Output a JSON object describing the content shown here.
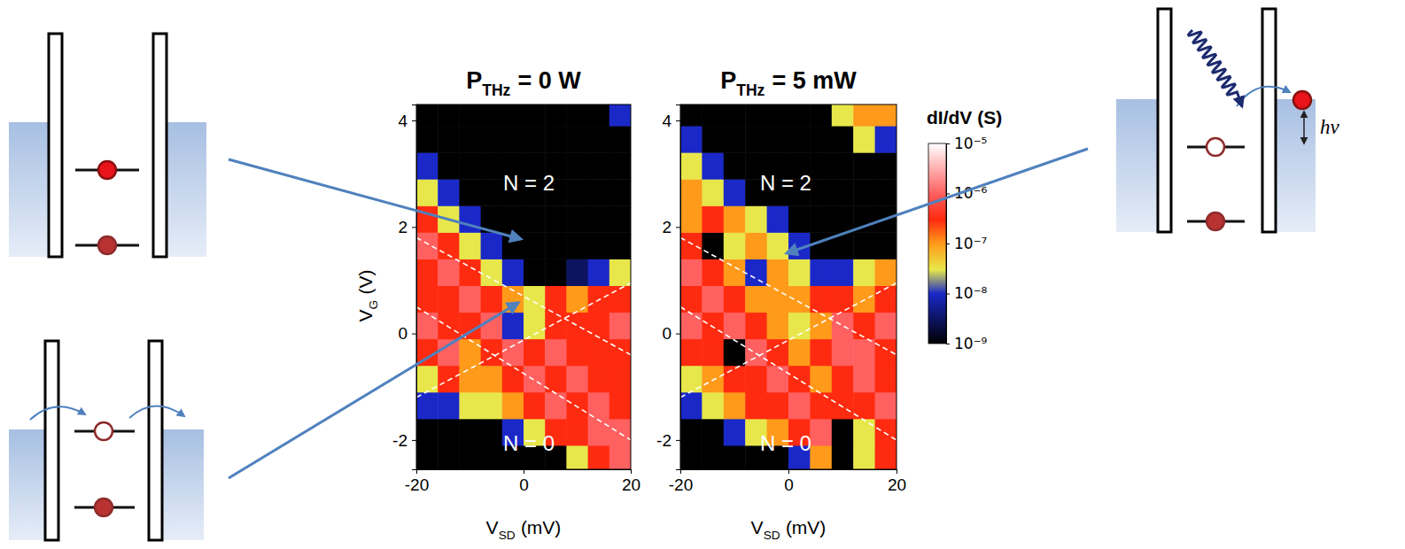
{
  "chart_data": [
    {
      "type": "heatmap",
      "title": {
        "symbol": "P",
        "subscript": "THz",
        "text": "= 0 W"
      },
      "x_label": {
        "symbol": "V",
        "subscript": "SD",
        "text": "(mV)"
      },
      "y_label": {
        "symbol": "V",
        "subscript": "G",
        "text": "(V)"
      },
      "xlim": [
        -20,
        20
      ],
      "ylim": [
        -2.55,
        4.3
      ],
      "xticks": [
        -20,
        0,
        20
      ],
      "yticks": [
        -2,
        0,
        2,
        4
      ],
      "x_edges": [
        -20,
        -16,
        -12,
        -8,
        -4,
        0,
        4,
        8,
        12,
        16,
        20
      ],
      "y_edges": [
        -2.6,
        -2.1,
        -1.6,
        -1.1,
        -0.6,
        -0.1,
        0.4,
        0.9,
        1.4,
        1.9,
        2.4,
        2.9,
        3.4,
        3.9,
        4.4
      ],
      "cells": [
        [
          1e-09,
          1e-09,
          1e-09,
          1e-09,
          1e-09,
          1e-09,
          1e-09,
          3e-08,
          3e-07,
          1e-06
        ],
        [
          1e-09,
          1e-09,
          1e-09,
          1e-09,
          1e-08,
          3e-08,
          3e-07,
          3e-07,
          1e-06,
          1e-06
        ],
        [
          1e-08,
          1e-08,
          3e-08,
          3e-08,
          1e-07,
          3e-07,
          1e-06,
          3e-07,
          1e-06,
          3e-07
        ],
        [
          3e-08,
          3e-07,
          1e-07,
          1e-07,
          3e-07,
          1e-06,
          3e-07,
          1e-06,
          3e-07,
          3e-07
        ],
        [
          3e-07,
          1e-06,
          1e-07,
          3e-07,
          1e-06,
          3e-07,
          1e-06,
          3e-07,
          3e-07,
          3e-07
        ],
        [
          1e-06,
          3e-07,
          3e-07,
          1e-06,
          1e-08,
          3e-08,
          3e-07,
          3e-07,
          3e-07,
          1e-06
        ],
        [
          3e-07,
          3e-07,
          1e-06,
          3e-07,
          1e-07,
          3e-08,
          3e-07,
          1e-07,
          3e-07,
          3e-07
        ],
        [
          3e-07,
          1e-06,
          3e-07,
          3e-08,
          1e-08,
          1e-09,
          1e-09,
          3e-09,
          1e-08,
          3e-08
        ],
        [
          1e-06,
          3e-07,
          3e-08,
          1e-08,
          1e-09,
          1e-09,
          1e-09,
          1e-09,
          1e-09,
          1e-09
        ],
        [
          3e-07,
          3e-08,
          1e-08,
          1e-09,
          1e-09,
          1e-09,
          1e-09,
          1e-09,
          1e-09,
          1e-09
        ],
        [
          3e-08,
          1e-08,
          1e-09,
          1e-09,
          1e-09,
          1e-09,
          1e-09,
          1e-09,
          1e-09,
          1e-09
        ],
        [
          1e-08,
          1e-09,
          1e-09,
          1e-09,
          1e-09,
          1e-09,
          1e-09,
          1e-09,
          1e-09,
          1e-09
        ],
        [
          1e-09,
          1e-09,
          1e-09,
          1e-09,
          1e-09,
          1e-09,
          1e-09,
          1e-09,
          1e-09,
          1e-09
        ],
        [
          1e-09,
          1e-09,
          1e-09,
          1e-09,
          1e-09,
          1e-09,
          1e-09,
          1e-09,
          1e-09,
          1e-08
        ]
      ],
      "guide_lines": [
        {
          "x": [
            -20,
            20
          ],
          "y": [
            1.8,
            -0.4
          ]
        },
        {
          "x": [
            -20,
            20
          ],
          "y": [
            0.5,
            -2.0
          ]
        },
        {
          "x": [
            -20,
            20
          ],
          "y": [
            -1.2,
            0.95
          ]
        }
      ],
      "annotations": [
        {
          "text": "N = 2",
          "x": 1,
          "y": 2.8
        },
        {
          "text": "N = 0",
          "x": 1,
          "y": -2.1
        }
      ]
    },
    {
      "type": "heatmap",
      "title": {
        "symbol": "P",
        "subscript": "THz",
        "text": "= 5 mW"
      },
      "x_label": {
        "symbol": "V",
        "subscript": "SD",
        "text": "(mV)"
      },
      "xlim": [
        -20,
        20
      ],
      "ylim": [
        -2.55,
        4.3
      ],
      "xticks": [
        -20,
        0,
        20
      ],
      "yticks": [
        -2,
        0,
        2,
        4
      ],
      "x_edges": [
        -20,
        -16,
        -12,
        -8,
        -4,
        0,
        4,
        8,
        12,
        16,
        20
      ],
      "y_edges": [
        -2.6,
        -2.1,
        -1.6,
        -1.1,
        -0.6,
        -0.1,
        0.4,
        0.9,
        1.4,
        1.9,
        2.4,
        2.9,
        3.4,
        3.9,
        4.4
      ],
      "cells": [
        [
          1e-09,
          1e-09,
          1e-09,
          1e-09,
          1e-09,
          1e-08,
          1e-07,
          1e-09,
          3e-08,
          3e-07
        ],
        [
          1e-09,
          1e-09,
          1e-08,
          3e-08,
          1e-07,
          3e-07,
          1e-06,
          1e-09,
          3e-08,
          3e-07
        ],
        [
          1e-08,
          3e-08,
          1e-07,
          3e-07,
          3e-07,
          1e-06,
          3e-07,
          3e-07,
          3e-07,
          1e-06
        ],
        [
          3e-08,
          1e-07,
          3e-07,
          3e-07,
          1e-06,
          3e-07,
          1e-07,
          3e-07,
          1e-06,
          3e-07
        ],
        [
          3e-07,
          3e-07,
          1e-09,
          1e-06,
          3e-07,
          1e-07,
          3e-07,
          1e-06,
          1e-06,
          3e-07
        ],
        [
          1e-06,
          3e-07,
          1e-06,
          3e-07,
          1e-07,
          3e-08,
          1e-07,
          1e-06,
          3e-07,
          1e-06
        ],
        [
          3e-07,
          1e-06,
          3e-07,
          1e-07,
          1e-07,
          1e-07,
          3e-07,
          3e-07,
          1e-07,
          3e-07
        ],
        [
          1e-06,
          3e-07,
          1e-07,
          1e-08,
          1e-07,
          3e-08,
          1e-08,
          1e-08,
          3e-08,
          1e-07
        ],
        [
          3e-07,
          1e-09,
          3e-08,
          1e-07,
          3e-08,
          1e-08,
          1e-09,
          1e-09,
          1e-09,
          1e-09
        ],
        [
          1e-07,
          3e-07,
          1e-07,
          3e-08,
          1e-08,
          1e-09,
          1e-09,
          1e-09,
          1e-09,
          1e-09
        ],
        [
          1e-07,
          3e-08,
          1e-08,
          1e-09,
          1e-09,
          1e-09,
          1e-09,
          1e-09,
          1e-09,
          1e-09
        ],
        [
          3e-08,
          1e-08,
          1e-09,
          1e-09,
          1e-09,
          1e-09,
          1e-09,
          1e-09,
          1e-09,
          1e-09
        ],
        [
          1e-08,
          1e-09,
          1e-09,
          1e-09,
          1e-09,
          1e-09,
          1e-09,
          1e-09,
          3e-08,
          1e-08
        ],
        [
          1e-09,
          1e-09,
          1e-09,
          1e-09,
          1e-09,
          1e-09,
          1e-09,
          3e-08,
          1e-07,
          1e-07
        ]
      ],
      "guide_lines": [
        {
          "x": [
            -20,
            20
          ],
          "y": [
            1.8,
            -0.4
          ]
        },
        {
          "x": [
            -20,
            20
          ],
          "y": [
            0.5,
            -2.0
          ]
        },
        {
          "x": [
            -20,
            20
          ],
          "y": [
            -1.2,
            0.95
          ]
        }
      ],
      "annotations": [
        {
          "text": "N = 2",
          "x": -0.5,
          "y": 2.8
        },
        {
          "text": "N = 0",
          "x": -0.5,
          "y": -2.1
        }
      ]
    }
  ],
  "colorbar": {
    "title": "dI/dV (S)",
    "log": true,
    "range": [
      1e-09,
      1e-05
    ],
    "ticks": [
      {
        "value": 1e-09,
        "label": "10⁻⁹"
      },
      {
        "value": 1e-08,
        "label": "10⁻⁸"
      },
      {
        "value": 1e-07,
        "label": "10⁻⁷"
      },
      {
        "value": 1e-06,
        "label": "10⁻⁶"
      },
      {
        "value": 1e-05,
        "label": "10⁻⁵"
      }
    ]
  },
  "diagram": {
    "photon_label": "hν"
  }
}
